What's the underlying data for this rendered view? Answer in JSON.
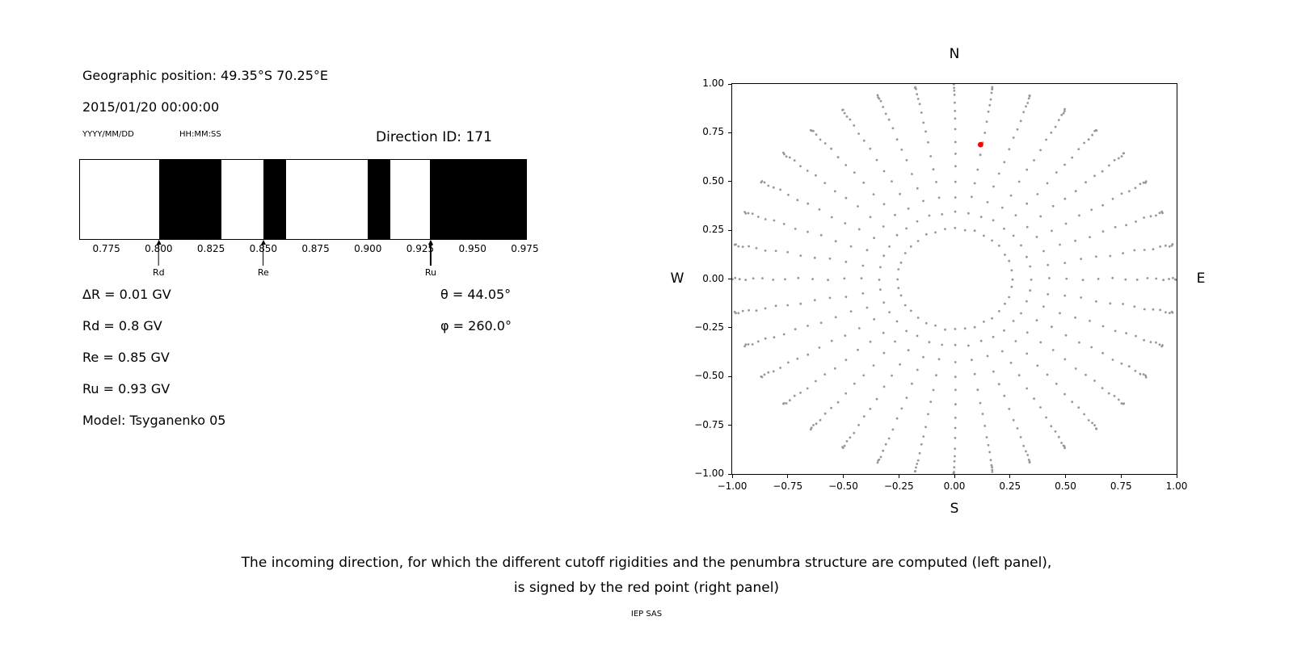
{
  "left_panel": {
    "geo_position": "Geographic position: 49.35°S 70.25°E",
    "datetime": "2015/01/20 00:00:00",
    "date_format_label": "YYYY/MM/DD",
    "time_format_label": "HH:MM:SS",
    "direction_id": "Direction ID: 171",
    "delta_r": "ΔR = 0.01 GV",
    "rd": "Rd = 0.8 GV",
    "re": "Re = 0.85 GV",
    "ru": "Ru = 0.93 GV",
    "model": "Model: Tsyganenko 05",
    "theta": "θ = 44.05°",
    "phi": "φ = 260.0°"
  },
  "caption": {
    "line1": "The incoming direction, for which the different cutoff rigidities and the penumbra structure are computed (left panel),",
    "line2": "is signed by the red point (right panel)",
    "credit": "IEP SAS"
  },
  "chart_data": [
    {
      "type": "bar",
      "xlim": [
        0.762,
        0.976
      ],
      "xticks": [
        "0.775",
        "0.800",
        "0.825",
        "0.850",
        "0.875",
        "0.900",
        "0.925",
        "0.950",
        "0.975"
      ],
      "xtick_values": [
        0.775,
        0.8,
        0.825,
        0.85,
        0.875,
        0.9,
        0.925,
        0.95,
        0.975
      ],
      "forbidden_bands_gv": [
        [
          0.8,
          0.83
        ],
        [
          0.85,
          0.861
        ],
        [
          0.9,
          0.911
        ],
        [
          0.93,
          0.976
        ]
      ],
      "band_color": "#000000",
      "background": "#ffffff",
      "markers": [
        {
          "label": "Rd",
          "value": 0.8
        },
        {
          "label": "Re",
          "value": 0.85
        },
        {
          "label": "Ru",
          "value": 0.93
        }
      ]
    },
    {
      "type": "scatter",
      "xlim": [
        -1,
        1
      ],
      "ylim": [
        -1,
        1
      ],
      "grid": false,
      "xticks": [
        "−1.00",
        "−0.75",
        "−0.50",
        "−0.25",
        "0.00",
        "0.25",
        "0.50",
        "0.75",
        "1.00"
      ],
      "xtick_values": [
        -1,
        -0.75,
        -0.5,
        -0.25,
        0,
        0.25,
        0.5,
        0.75,
        1
      ],
      "yticks": [
        "1.00",
        "0.75",
        "0.50",
        "0.25",
        "0.00",
        "−0.25",
        "−0.50",
        "−0.75",
        "−1.00"
      ],
      "ytick_values": [
        1,
        0.75,
        0.5,
        0.25,
        0,
        -0.25,
        -0.5,
        -0.75,
        -1
      ],
      "compass": {
        "top": "N",
        "bottom": "S",
        "left": "W",
        "right": "E"
      },
      "dot_color": "#979797",
      "direction_grid": {
        "azimuth_deg_start": 0,
        "azimuth_deg_step": 10,
        "azimuth_count": 36,
        "zenith_deg_start": 15,
        "zenith_deg_step": 5,
        "zenith_deg_end": 90,
        "radius_mapping": "sin(zenith)"
      },
      "highlight_point": {
        "x": 0.118,
        "y": 0.689,
        "color": "#ff0000"
      }
    }
  ]
}
